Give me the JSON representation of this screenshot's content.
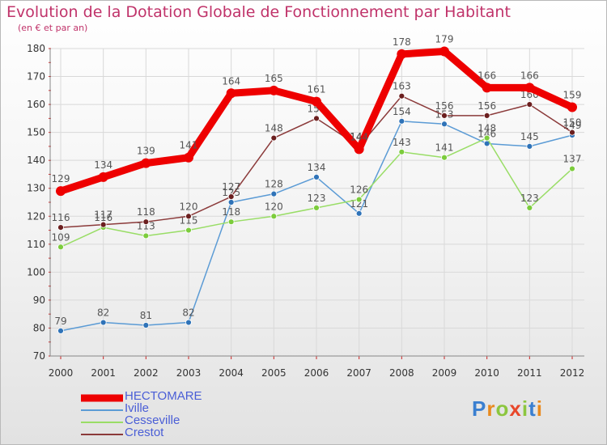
{
  "title": "Evolution de la Dotation Globale de Fonctionnement par Habitant",
  "subtitle": "(en € et par an)",
  "logo": {
    "text": "Proxiti",
    "letters": [
      "P",
      "r",
      "o",
      "x",
      "i",
      "t",
      "i"
    ],
    "colors": [
      "#3a7fd0",
      "#e98a1e",
      "#8cc63f",
      "#e8472a",
      "#8cc63f",
      "#3a7fd0",
      "#e98a1e"
    ]
  },
  "chart_data": {
    "type": "line",
    "title": "Evolution de la Dotation Globale de Fonctionnement par Habitant",
    "ylabel": "(en € et par an)",
    "categories": [
      "2000",
      "2001",
      "2002",
      "2003",
      "2004",
      "2005",
      "2006",
      "2007",
      "2008",
      "2009",
      "2010",
      "2011",
      "2012"
    ],
    "ylim": [
      70,
      180
    ],
    "yticks": [
      70,
      80,
      90,
      100,
      110,
      120,
      130,
      140,
      150,
      160,
      170,
      180
    ],
    "grid": true,
    "series": [
      {
        "name": "Iville",
        "color": "#5b9bd5",
        "marker": "#2f73b8",
        "values": [
          79,
          82,
          81,
          82,
          125,
          128,
          134,
          121,
          154,
          153,
          146,
          145,
          149
        ]
      },
      {
        "name": "Cesseville",
        "color": "#99dd66",
        "marker": "#7ccc3c",
        "values": [
          109,
          116,
          113,
          115,
          118,
          120,
          123,
          126,
          143,
          141,
          148,
          123,
          137
        ]
      },
      {
        "name": "Crestot",
        "color": "#8b3a3a",
        "marker": "#6b1f1f",
        "values": [
          116,
          117,
          118,
          120,
          127,
          148,
          155,
          145,
          163,
          156,
          156,
          160,
          150
        ]
      },
      {
        "name": "HECTOMARE",
        "color": "#ee0000",
        "marker": "#ee0000",
        "values": [
          129,
          134,
          139,
          141,
          164,
          165,
          161,
          144,
          178,
          179,
          166,
          166,
          159
        ]
      }
    ],
    "legend": [
      {
        "name": "HECTOMARE",
        "color": "#ee0000"
      },
      {
        "name": "Iville",
        "color": "#5b9bd5"
      },
      {
        "name": "Cesseville",
        "color": "#99dd66"
      },
      {
        "name": "Crestot",
        "color": "#8b3a3a"
      }
    ]
  }
}
